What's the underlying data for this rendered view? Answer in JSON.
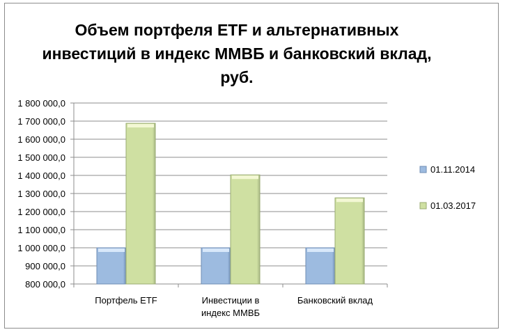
{
  "chart_data": {
    "type": "bar",
    "title": "Объем портфеля ETF и альтернативных инвестиций в индекс ММВБ и банковский вклад, руб.",
    "categories": [
      [
        "Портфель ETF"
      ],
      [
        "Инвестиции в",
        "индекс ММВБ"
      ],
      [
        "Банковский вклад"
      ]
    ],
    "series": [
      {
        "name": "01.11.2014",
        "values": [
          1000000,
          1000000,
          1000000
        ],
        "color": "#9dbbe0"
      },
      {
        "name": "01.03.2017",
        "values": [
          1688000,
          1403000,
          1276000
        ],
        "color": "#cfe0a2"
      }
    ],
    "ylim": [
      800000,
      1800000
    ],
    "yticks": [
      "800 000,0",
      "900 000,0",
      "1 000 000,0",
      "1 100 000,0",
      "1 200 000,0",
      "1 300 000,0",
      "1 400 000,0",
      "1 500 000,0",
      "1 600 000,0",
      "1 700 000,0",
      "1 800 000,0"
    ],
    "grid": true,
    "legend": "right"
  }
}
